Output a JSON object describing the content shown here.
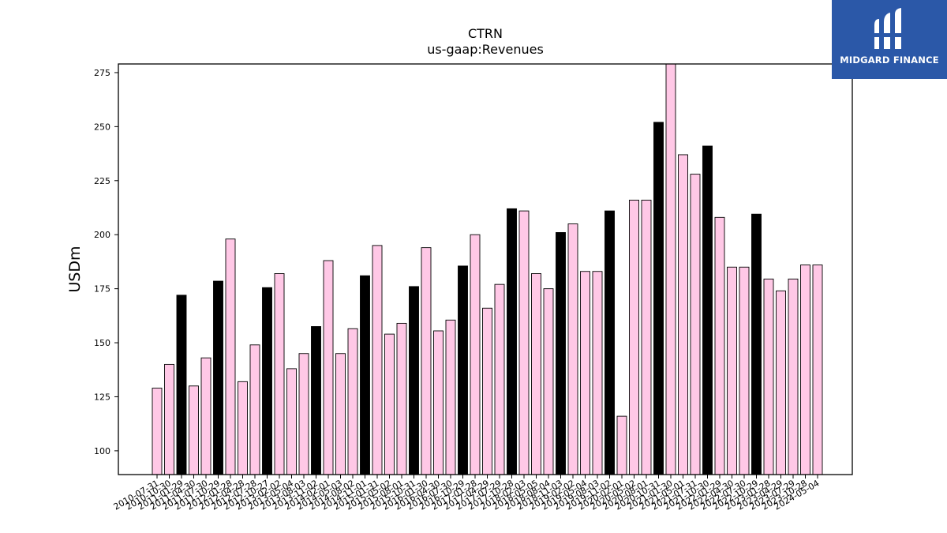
{
  "logo": {
    "text": "MIDGARD FINANCE"
  },
  "colors": {
    "annual": "#000000",
    "quarterly": "#ffc8e6",
    "edge": "#000000",
    "logo_bg": "#2b58a8"
  },
  "chart_data": {
    "type": "bar",
    "title": "CTRN",
    "subtitle": "us-gaap:Revenues",
    "xlabel": "",
    "ylabel": "USDm",
    "ylim": [
      89,
      279
    ],
    "yticks": [
      100,
      125,
      150,
      175,
      200,
      225,
      250,
      275
    ],
    "grid": false,
    "categories": [
      "2010-07-31",
      "2010-10-30",
      "2011-01-29",
      "2011-04-30",
      "2011-07-30",
      "2011-10-29",
      "2012-01-28",
      "2012-04-28",
      "2012-07-28",
      "2012-10-27",
      "2013-02-02",
      "2013-05-04",
      "2013-08-03",
      "2013-11-02",
      "2014-02-01",
      "2014-05-03",
      "2014-08-02",
      "2014-11-01",
      "2015-01-31",
      "2015-05-02",
      "2015-08-01",
      "2015-10-31",
      "2016-01-30",
      "2016-04-30",
      "2016-07-30",
      "2016-10-29",
      "2017-01-28",
      "2017-04-29",
      "2017-07-29",
      "2017-10-28",
      "2018-02-03",
      "2018-05-05",
      "2018-08-04",
      "2018-11-03",
      "2019-02-02",
      "2019-05-04",
      "2019-08-03",
      "2019-11-02",
      "2020-02-01",
      "2020-05-02",
      "2020-08-01",
      "2020-10-31",
      "2021-01-30",
      "2021-05-01",
      "2021-07-31",
      "2021-10-30",
      "2022-01-29",
      "2022-04-30",
      "2022-07-30",
      "2022-10-29",
      "2023-01-28",
      "2023-04-29",
      "2023-07-29",
      "2023-10-28",
      "2024-05-04"
    ],
    "values": [
      129,
      140,
      172,
      130,
      143,
      178.5,
      198,
      132,
      149,
      175.5,
      182,
      138,
      145,
      157.5,
      188,
      145,
      156.5,
      181,
      195,
      154,
      159,
      176,
      194,
      155.5,
      160.5,
      185.5,
      200,
      166,
      177,
      212,
      211,
      182,
      175,
      201,
      205,
      183,
      183,
      211,
      116,
      216,
      216,
      252,
      281,
      237,
      228,
      241,
      208,
      185,
      185,
      209.5,
      179.5,
      174,
      179.5,
      186,
      186
    ],
    "annual_indices": [
      2,
      5,
      9,
      13,
      17,
      21,
      25,
      29,
      33,
      37,
      41,
      45,
      49
    ],
    "series": [
      {
        "type": "annual"
      },
      {
        "type": "quarterly"
      }
    ]
  }
}
